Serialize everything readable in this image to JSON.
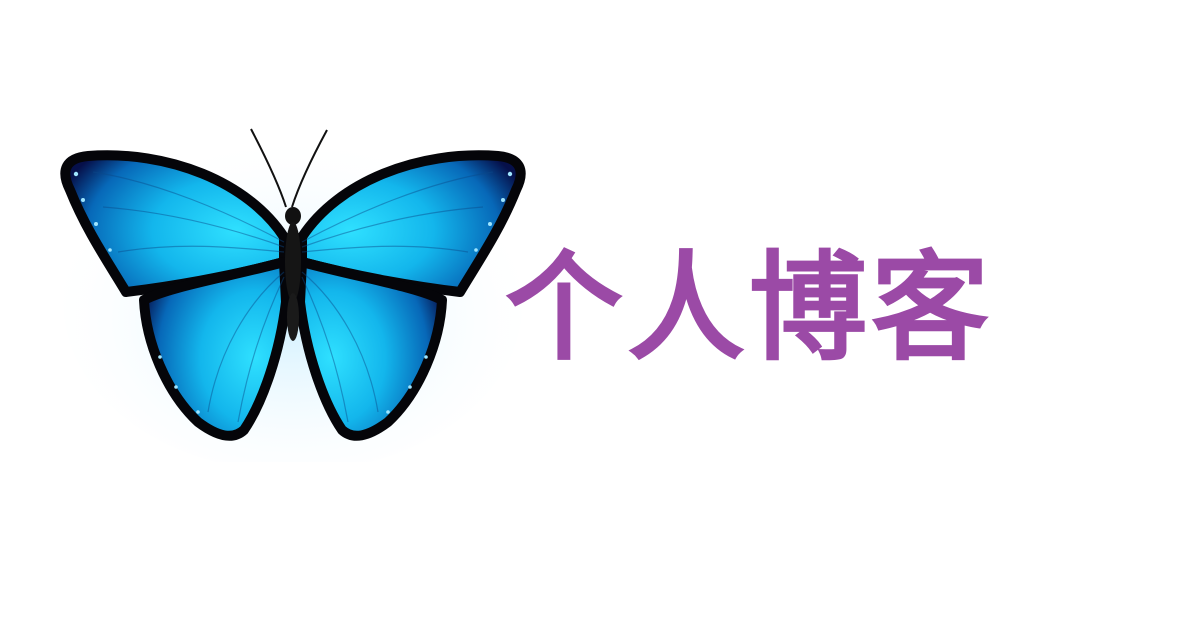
{
  "brand": {
    "title": "个人博客",
    "title_color": "#9b4aa6",
    "logo_icon": "butterfly-icon",
    "wing_colors": {
      "light": "#19c8f2",
      "mid": "#0a95d6",
      "dark": "#06104a",
      "border": "#050509",
      "spots": "#9fe6ff"
    }
  }
}
